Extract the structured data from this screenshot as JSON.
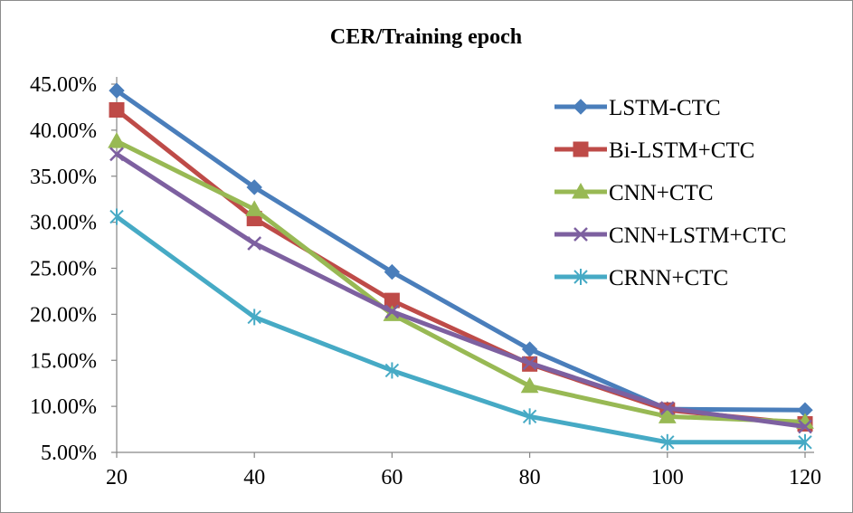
{
  "chart_data": {
    "type": "line",
    "title": "CER/Training epoch",
    "xlabel": "",
    "ylabel": "",
    "x": [
      20,
      40,
      60,
      80,
      100,
      120
    ],
    "x_tick_labels": [
      "20",
      "40",
      "60",
      "80",
      "100",
      "120"
    ],
    "ylim": [
      5,
      45
    ],
    "y_tick_values": [
      5,
      10,
      15,
      20,
      25,
      30,
      35,
      40,
      45
    ],
    "y_tick_labels": [
      "5.00%",
      "10.00%",
      "15.00%",
      "20.00%",
      "25.00%",
      "30.00%",
      "35.00%",
      "40.00%",
      "45.00%"
    ],
    "grid": false,
    "legend_position": "right",
    "series": [
      {
        "name": "LSTM-CTC",
        "color": "#4a7ebb",
        "marker": "diamond",
        "values": [
          44.3,
          33.8,
          24.6,
          16.2,
          9.7,
          9.6
        ]
      },
      {
        "name": "Bi-LSTM+CTC",
        "color": "#be4b48",
        "marker": "square",
        "values": [
          42.2,
          30.4,
          21.5,
          14.6,
          9.6,
          8.1
        ]
      },
      {
        "name": "CNN+CTC",
        "color": "#98b954",
        "marker": "triangle",
        "values": [
          38.8,
          31.4,
          20.0,
          12.2,
          8.9,
          8.3
        ]
      },
      {
        "name": "CNN+LSTM+CTC",
        "color": "#7d60a0",
        "marker": "x",
        "values": [
          37.4,
          27.7,
          20.3,
          14.7,
          9.8,
          7.8
        ]
      },
      {
        "name": "CRNN+CTC",
        "color": "#46aac5",
        "marker": "asterisk",
        "values": [
          30.6,
          19.7,
          13.9,
          8.9,
          6.1,
          6.1
        ]
      }
    ]
  }
}
